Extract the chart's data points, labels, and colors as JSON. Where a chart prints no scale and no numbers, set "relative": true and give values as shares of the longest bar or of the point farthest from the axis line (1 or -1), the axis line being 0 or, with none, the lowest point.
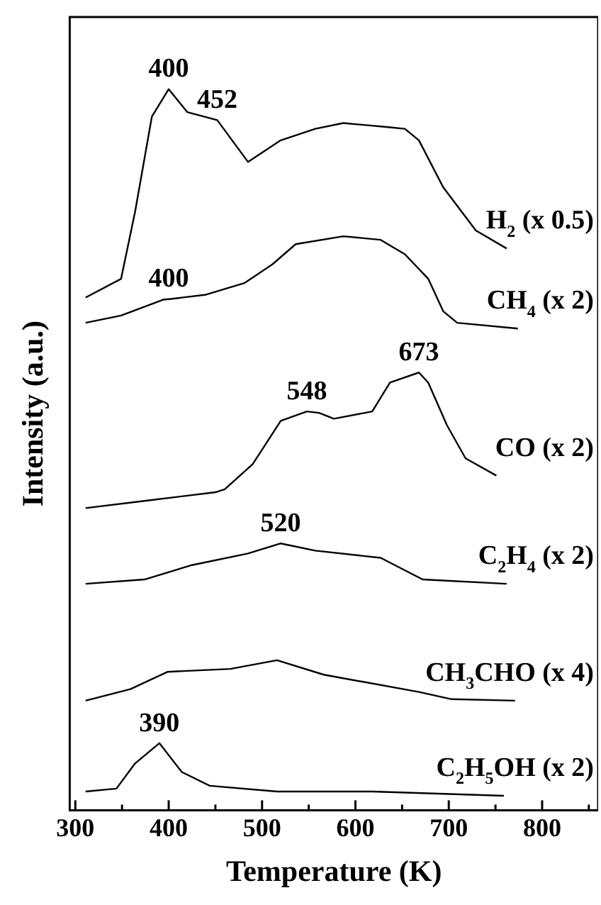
{
  "chart_data": {
    "type": "line",
    "xlabel": "Temperature (K)",
    "ylabel": "Intensity (a.u.)",
    "relative": true,
    "xlim": [
      294,
      860
    ],
    "xticks": [
      300,
      {
        "value": 350,
        "label": null
      },
      400,
      {
        "value": 450,
        "label": null
      },
      500,
      {
        "value": 550,
        "label": null
      },
      600,
      {
        "value": 650,
        "label": null
      },
      700,
      {
        "value": 750,
        "label": null
      },
      800,
      {
        "value": 850,
        "label": null
      }
    ],
    "grid": false,
    "legend": false,
    "marker": "none",
    "line_style": "solid",
    "series": [
      {
        "name": "H$_{2}$ (x 0.5)",
        "color": "#000000",
        "x": [
          311,
          349,
          364,
          382,
          400,
          420,
          452,
          485,
          520,
          557,
          587,
          637,
          653,
          668,
          694,
          729,
          762
        ],
        "values": [
          0.711,
          0.737,
          0.83,
          0.962,
          1.0,
          0.968,
          0.957,
          0.899,
          0.929,
          0.945,
          0.953,
          0.947,
          0.945,
          0.929,
          0.864,
          0.804,
          0.779
        ]
      },
      {
        "name": "CH$_{4}$ (x 2)",
        "color": "#000000",
        "x": [
          311,
          349,
          394,
          402,
          440,
          481,
          511,
          536,
          587,
          627,
          653,
          678,
          694,
          709,
          774
        ],
        "values": [
          0.676,
          0.686,
          0.708,
          0.709,
          0.715,
          0.731,
          0.757,
          0.785,
          0.796,
          0.791,
          0.771,
          0.737,
          0.692,
          0.676,
          0.668
        ]
      },
      {
        "name": "CO (x 2)",
        "color": "#000000",
        "x": [
          311,
          374,
          450,
          460,
          490,
          520,
          548,
          561,
          577,
          618,
          637,
          668,
          678,
          698,
          718,
          751
        ],
        "values": [
          0.419,
          0.429,
          0.441,
          0.445,
          0.48,
          0.54,
          0.553,
          0.551,
          0.543,
          0.553,
          0.593,
          0.607,
          0.593,
          0.534,
          0.488,
          0.464
        ]
      },
      {
        "name": "C$_{2}$H$_{4}$ (x 2)",
        "color": "#000000",
        "x": [
          311,
          374,
          425,
          485,
          520,
          557,
          627,
          672,
          762
        ],
        "values": [
          0.314,
          0.32,
          0.34,
          0.356,
          0.37,
          0.36,
          0.35,
          0.32,
          0.314
        ]
      },
      {
        "name": "CH$_{3}$CHO (x 4)",
        "color": "#000000",
        "x": [
          311,
          359,
          399,
          466,
          516,
          566,
          668,
          703,
          771
        ],
        "values": [
          0.152,
          0.168,
          0.192,
          0.196,
          0.208,
          0.188,
          0.164,
          0.154,
          0.152
        ]
      },
      {
        "name": "C$_{2}$H$_{5}$OH (x 2)",
        "color": "#000000",
        "x": [
          311,
          344,
          364,
          390,
          414,
          444,
          516,
          618,
          759
        ],
        "values": [
          0.026,
          0.03,
          0.065,
          0.093,
          0.053,
          0.034,
          0.026,
          0.026,
          0.02
        ]
      }
    ],
    "annotations": [
      {
        "text": "400",
        "x": 400,
        "y": 1.0
      },
      {
        "text": "452",
        "x": 452,
        "y": 0.957
      },
      {
        "text": "400",
        "x": 400,
        "y": 0.709
      },
      {
        "text": "548",
        "x": 548,
        "y": 0.553
      },
      {
        "text": "673",
        "x": 668,
        "y": 0.607
      },
      {
        "text": "520",
        "x": 520,
        "y": 0.37
      },
      {
        "text": "390",
        "x": 390,
        "y": 0.093
      }
    ]
  }
}
